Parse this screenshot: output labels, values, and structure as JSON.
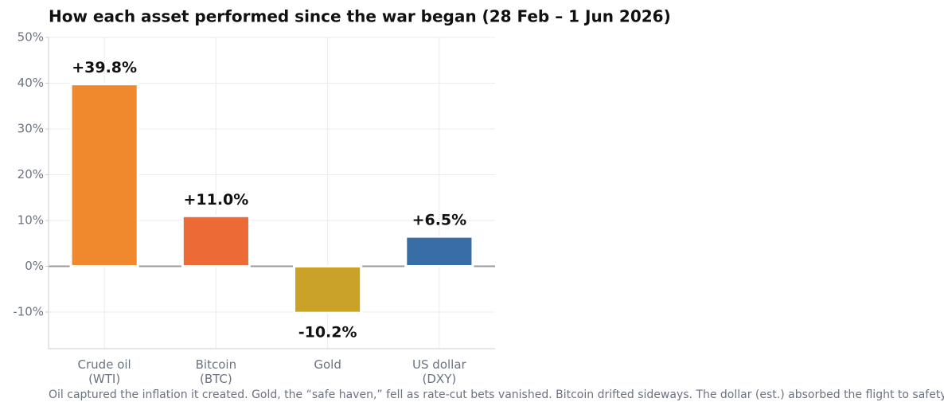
{
  "chart_data": {
    "type": "bar",
    "title": "How each asset performed since the war began (28 Feb – 1 Jun 2026)",
    "caption": "Oil captured the inflation it created. Gold, the “safe haven,” fell as rate-cut bets vanished. Bitcoin drifted sideways. The dollar (est.) absorbed the flight to safety.",
    "categories": [
      [
        "Crude oil",
        "(WTI)"
      ],
      [
        "Bitcoin",
        "(BTC)"
      ],
      [
        "Gold"
      ],
      [
        "US dollar",
        "(DXY)"
      ]
    ],
    "values": [
      39.8,
      11.0,
      -10.2,
      6.5
    ],
    "value_labels": [
      "+39.8%",
      "+11.0%",
      "-10.2%",
      "+6.5%"
    ],
    "colors": [
      "#f0892e",
      "#eb6a35",
      "#c9a227",
      "#386ea6"
    ],
    "ylim": [
      -18,
      50
    ],
    "yticks": [
      {
        "value": -10,
        "label": "-10%"
      },
      {
        "value": 0,
        "label": "0%"
      },
      {
        "value": 10,
        "label": "10%"
      },
      {
        "value": 20,
        "label": "20%"
      },
      {
        "value": 30,
        "label": "30%"
      },
      {
        "value": 40,
        "label": "40%"
      },
      {
        "value": 50,
        "label": "50%"
      }
    ],
    "grid": true
  }
}
